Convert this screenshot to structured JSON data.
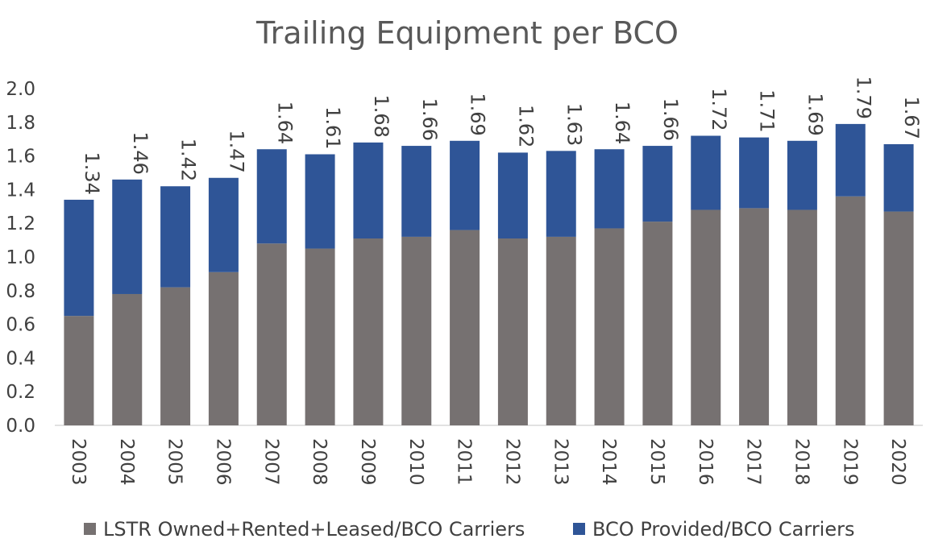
{
  "chart_data": {
    "type": "bar",
    "stacked": true,
    "title": "Trailing Equipment per BCO",
    "xlabel": "",
    "ylabel": "",
    "ylim": [
      0,
      2.0
    ],
    "ytick_step": 0.2,
    "yticks": [
      "0.0",
      "0.2",
      "0.4",
      "0.6",
      "0.8",
      "1.0",
      "1.2",
      "1.4",
      "1.6",
      "1.8",
      "2.0"
    ],
    "grid": false,
    "legend_position": "bottom",
    "categories": [
      "2003",
      "2004",
      "2005",
      "2006",
      "2007",
      "2008",
      "2009",
      "2010",
      "2011",
      "2012",
      "2013",
      "2014",
      "2015",
      "2016",
      "2017",
      "2018",
      "2019",
      "2020"
    ],
    "series": [
      {
        "name": "LSTR Owned+Rented+Leased/BCO Carriers",
        "color": "#767171",
        "values": [
          0.65,
          0.78,
          0.82,
          0.91,
          1.08,
          1.05,
          1.11,
          1.12,
          1.16,
          1.11,
          1.12,
          1.17,
          1.21,
          1.28,
          1.29,
          1.28,
          1.36,
          1.27
        ]
      },
      {
        "name": "BCO Provided/BCO Carriers",
        "color": "#2F5597",
        "values": [
          0.69,
          0.68,
          0.6,
          0.56,
          0.56,
          0.56,
          0.57,
          0.54,
          0.53,
          0.51,
          0.51,
          0.47,
          0.45,
          0.44,
          0.42,
          0.41,
          0.43,
          0.4
        ]
      }
    ],
    "totals": [
      "1.34",
      "1.46",
      "1.42",
      "1.47",
      "1.64",
      "1.61",
      "1.68",
      "1.66",
      "1.69",
      "1.62",
      "1.63",
      "1.64",
      "1.66",
      "1.72",
      "1.71",
      "1.69",
      "1.79",
      "1.67"
    ]
  }
}
